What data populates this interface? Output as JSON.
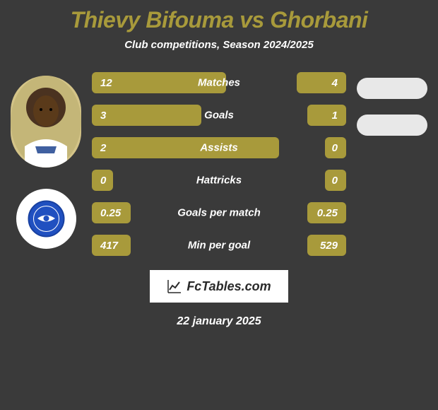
{
  "title": "Thievy Bifouma vs Ghorbani",
  "subtitle": "Club competitions, Season 2024/2025",
  "date": "22 january 2025",
  "footer_brand": "FcTables.com",
  "colors": {
    "background": "#3a3a3a",
    "accent": "#a89a3b",
    "text": "#ffffff",
    "badge": "#e8e8e8",
    "logo_bg": "#ffffff",
    "logo_text": "#2a2a2a",
    "club_emblem": "#2050c0"
  },
  "stats": [
    {
      "label": "Matches",
      "left_value": "12",
      "right_value": "4",
      "left_width": 190,
      "right_width": 70
    },
    {
      "label": "Goals",
      "left_value": "3",
      "right_value": "1",
      "left_width": 155,
      "right_width": 55
    },
    {
      "label": "Assists",
      "left_value": "2",
      "right_value": "0",
      "left_width": 265,
      "right_width": 30
    },
    {
      "label": "Hattricks",
      "left_value": "0",
      "right_value": "0",
      "left_width": 30,
      "right_width": 30
    },
    {
      "label": "Goals per match",
      "left_value": "0.25",
      "right_value": "0.25",
      "left_width": 55,
      "right_width": 55
    },
    {
      "label": "Min per goal",
      "left_value": "417",
      "right_value": "529",
      "left_width": 55,
      "right_width": 55
    }
  ]
}
